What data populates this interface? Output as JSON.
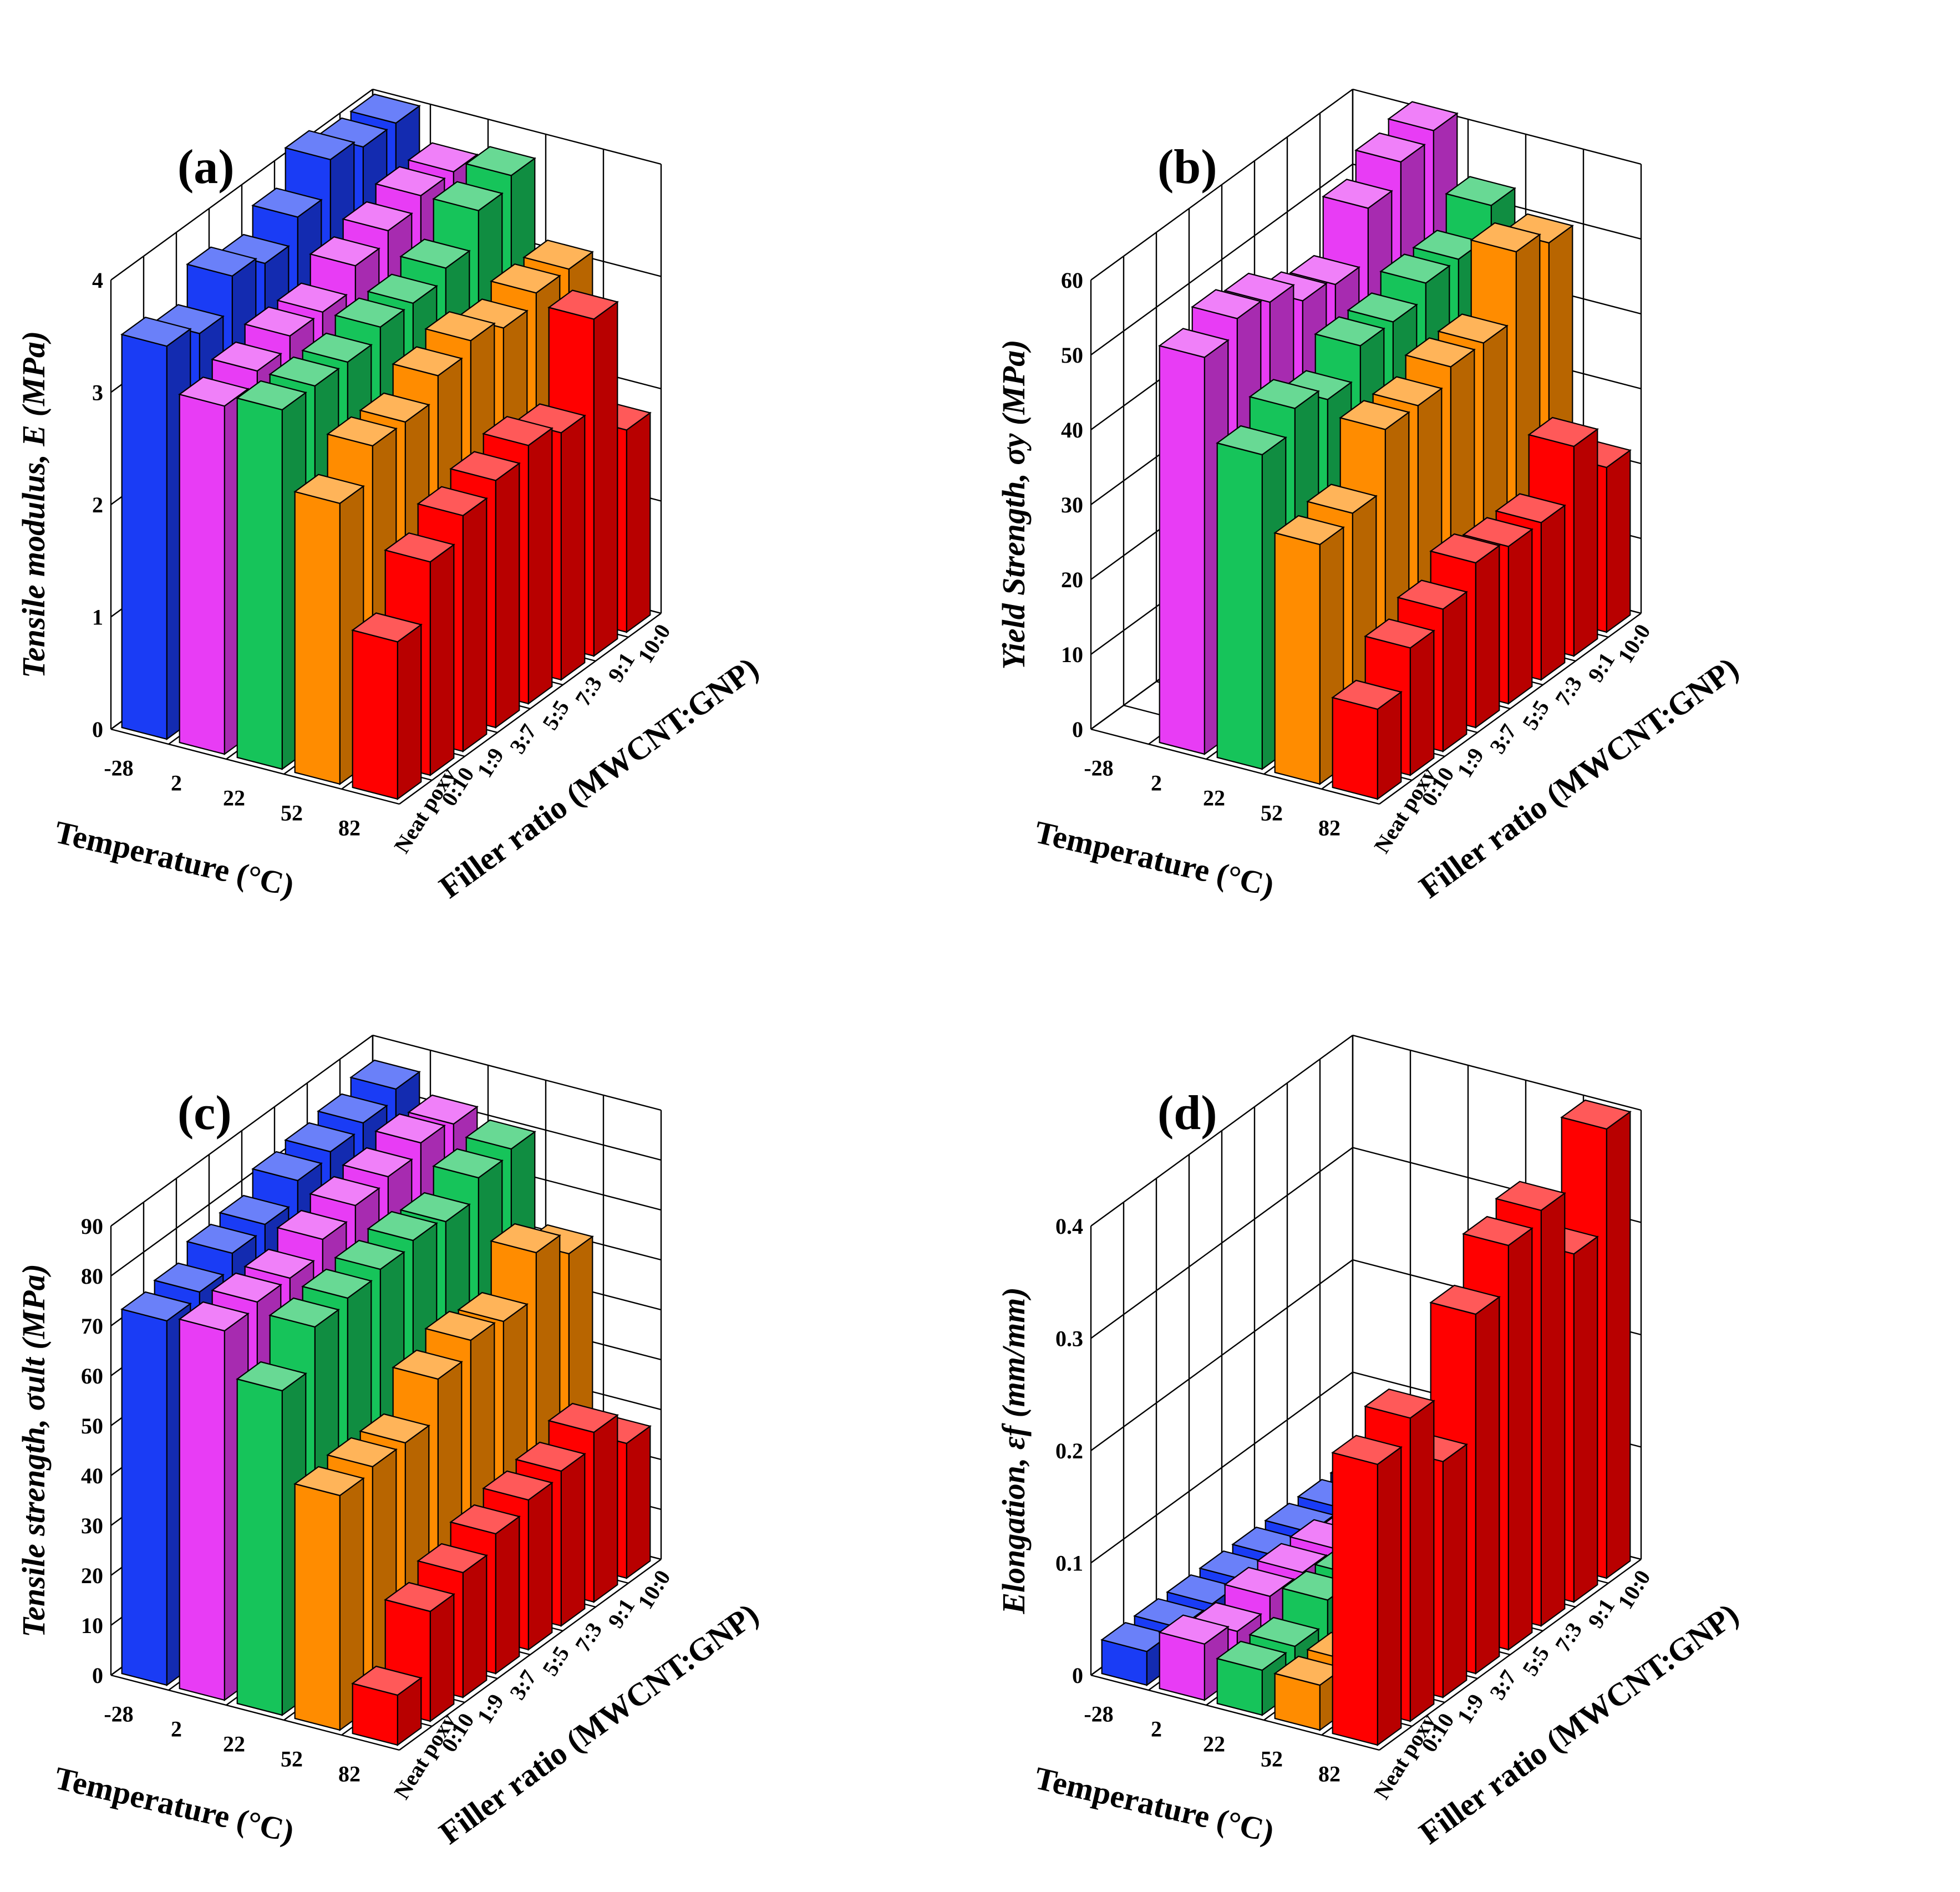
{
  "figure": {
    "panels": [
      "a",
      "b",
      "c",
      "d"
    ]
  },
  "colors": {
    "-28": "#1a3cf5",
    "2": "#e83cf5",
    "22": "#16c45a",
    "52": "#ff8c00",
    "82": "#ff0000"
  },
  "chart_data": [
    {
      "panel": "a",
      "label": "(a)",
      "type": "bar3d",
      "zlabel": "Tensile modulus, E (MPa)",
      "zlabel_main": "Tensile modulus, ",
      "zlabel_symbol": "E",
      "zlabel_unit": " (MPa)",
      "xlabel": "Temperature (°C)",
      "ylabel": "Filler ratio (MWCNT:GNP)",
      "temperatures": [
        "-28",
        "2",
        "22",
        "52",
        "82"
      ],
      "filler_ratios": [
        "Neat poxy",
        "0:10",
        "1:9",
        "3:7",
        "5:5",
        "7:3",
        "9:1",
        "10:0"
      ],
      "zticks": [
        "0",
        "1",
        "2",
        "3",
        "4"
      ],
      "zlim": [
        0,
        4
      ],
      "series": [
        {
          "name": "-28",
          "values": [
            3.5,
            3.4,
            3.7,
            3.6,
            3.8,
            4.1,
            4.0,
            4.0
          ]
        },
        {
          "name": "2",
          "values": [
            3.1,
            3.2,
            3.3,
            3.3,
            3.5,
            3.6,
            3.7,
            3.7
          ]
        },
        {
          "name": "22",
          "values": [
            3.2,
            3.2,
            3.2,
            3.3,
            3.3,
            3.4,
            3.7,
            3.8
          ]
        },
        {
          "name": "52",
          "values": [
            2.5,
            2.8,
            2.8,
            3.0,
            3.1,
            3.0,
            3.1,
            3.1
          ]
        },
        {
          "name": "82",
          "values": [
            1.4,
            1.9,
            2.1,
            2.2,
            2.3,
            2.2,
            3.0,
            1.8
          ]
        }
      ]
    },
    {
      "panel": "b",
      "label": "(b)",
      "type": "bar3d",
      "zlabel": "Yield Strength, σy (MPa)",
      "zlabel_main": "Yield Strength, ",
      "zlabel_symbol": "σy",
      "zlabel_unit": " (MPa)",
      "xlabel": "Temperature (°C)",
      "ylabel": "Filler ratio (MWCNT:GNP)",
      "temperatures": [
        "-28",
        "2",
        "22",
        "52",
        "82"
      ],
      "filler_ratios": [
        "Neat poxy",
        "0:10",
        "1:9",
        "3:7",
        "5:5",
        "7:3",
        "9:1",
        "10:0"
      ],
      "zticks": [
        "0",
        "10",
        "20",
        "30",
        "40",
        "50",
        "60"
      ],
      "zlim": [
        0,
        60
      ],
      "series": [
        {
          "name": "-28",
          "values": [
            0,
            0,
            0,
            0,
            0,
            0,
            0,
            0
          ]
        },
        {
          "name": "2",
          "values": [
            53,
            55,
            54,
            51,
            50,
            57,
            60,
            61
          ]
        },
        {
          "name": "22",
          "values": [
            42,
            45,
            43,
            47,
            47,
            49,
            49,
            53
          ]
        },
        {
          "name": "52",
          "values": [
            32,
            33,
            41,
            41,
            43,
            43,
            52,
            50
          ]
        },
        {
          "name": "82",
          "values": [
            12,
            17,
            19,
            22,
            21,
            21,
            28,
            22
          ]
        }
      ]
    },
    {
      "panel": "c",
      "label": "(c)",
      "type": "bar3d",
      "zlabel": "Tensile strength, σult (MPa)",
      "zlabel_main": "Tensile strength, ",
      "zlabel_symbol": "σult",
      "zlabel_unit": " (MPa)",
      "xlabel": "Temperature (°C)",
      "ylabel": "Filler ratio (MWCNT:GNP)",
      "temperatures": [
        "-28",
        "2",
        "22",
        "52",
        "82"
      ],
      "filler_ratios": [
        "Neat poxy",
        "0:10",
        "1:9",
        "3:7",
        "5:5",
        "7:3",
        "9:1",
        "10:0"
      ],
      "zticks": [
        "0",
        "10",
        "20",
        "30",
        "40",
        "50",
        "60",
        "70",
        "80",
        "90"
      ],
      "zlim": [
        0,
        90
      ],
      "series": [
        {
          "name": "-28",
          "values": [
            73,
            74,
            77,
            78,
            82,
            83,
            84,
            86
          ]
        },
        {
          "name": "2",
          "values": [
            74,
            75,
            75,
            78,
            80,
            81,
            83,
            82
          ]
        },
        {
          "name": "22",
          "values": [
            65,
            73,
            74,
            75,
            76,
            75,
            79,
            80
          ]
        },
        {
          "name": "52",
          "values": [
            47,
            48,
            48,
            56,
            59,
            58,
            67,
            62
          ]
        },
        {
          "name": "82",
          "values": [
            10,
            22,
            25,
            28,
            30,
            31,
            34,
            27
          ]
        }
      ]
    },
    {
      "panel": "d",
      "label": "(d)",
      "type": "bar3d",
      "zlabel": "Elongation, εf (mm/mm)",
      "zlabel_main": "Elongation, ",
      "zlabel_symbol": "εf",
      "zlabel_unit": " (mm/mm)",
      "xlabel": "Temperature (°C)",
      "ylabel": "Filler ratio (MWCNT:GNP)",
      "temperatures": [
        "-28",
        "2",
        "22",
        "52",
        "82"
      ],
      "filler_ratios": [
        "Neat poxy",
        "0:10",
        "1:9",
        "3:7",
        "5:5",
        "7:3",
        "9:1",
        "10:0"
      ],
      "zticks": [
        "0",
        "0.1",
        "0.2",
        "0.3",
        "0.4"
      ],
      "zlim": [
        0,
        0.4
      ],
      "series": [
        {
          "name": "-28",
          "values": [
            0.03,
            0.03,
            0.03,
            0.03,
            0.03,
            0.03,
            0.03,
            0.03
          ]
        },
        {
          "name": "2",
          "values": [
            0.05,
            0.04,
            0.05,
            0.05,
            0.05,
            0.04,
            0.05,
            0.05
          ]
        },
        {
          "name": "22",
          "values": [
            0.04,
            0.04,
            0.06,
            0.06,
            0.05,
            0.04,
            0.06,
            0.06
          ]
        },
        {
          "name": "52",
          "values": [
            0.04,
            0.04,
            0.04,
            0.04,
            0.04,
            0.04,
            0.04,
            0.04
          ]
        },
        {
          "name": "82",
          "values": [
            0.25,
            0.27,
            0.21,
            0.32,
            0.36,
            0.37,
            0.31,
            0.4
          ]
        }
      ]
    }
  ]
}
